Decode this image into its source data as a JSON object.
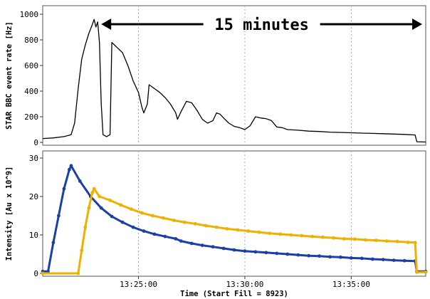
{
  "chart_data": [
    {
      "type": "line",
      "ylabel": "STAR BBC event rate [Hz]",
      "ylim": [
        0,
        1000
      ],
      "yticks": [
        0,
        200,
        400,
        600,
        800,
        1000
      ],
      "xlim": [
        "13:20:30",
        "13:38:30"
      ],
      "grid": true,
      "annotation": {
        "text": "15 minutes",
        "from": "13:23:15",
        "to": "13:38:20"
      },
      "series": [
        {
          "color": "#000000",
          "points": [
            [
              "13:20:30",
              30
            ],
            [
              "13:21:00",
              35
            ],
            [
              "13:21:30",
              45
            ],
            [
              "13:21:50",
              60
            ],
            [
              "13:22:00",
              150
            ],
            [
              "13:22:10",
              420
            ],
            [
              "13:22:20",
              650
            ],
            [
              "13:22:30",
              760
            ],
            [
              "13:22:40",
              850
            ],
            [
              "13:22:50",
              920
            ],
            [
              "13:22:55",
              960
            ],
            [
              "13:23:00",
              900
            ],
            [
              "13:23:05",
              940
            ],
            [
              "13:23:10",
              780
            ],
            [
              "13:23:15",
              300
            ],
            [
              "13:23:20",
              60
            ],
            [
              "13:23:30",
              45
            ],
            [
              "13:23:40",
              60
            ],
            [
              "13:23:45",
              780
            ],
            [
              "13:24:00",
              740
            ],
            [
              "13:24:15",
              700
            ],
            [
              "13:24:30",
              600
            ],
            [
              "13:24:45",
              480
            ],
            [
              "13:25:00",
              390
            ],
            [
              "13:25:10",
              270
            ],
            [
              "13:25:15",
              230
            ],
            [
              "13:25:25",
              300
            ],
            [
              "13:25:30",
              450
            ],
            [
              "13:25:45",
              420
            ],
            [
              "13:26:00",
              390
            ],
            [
              "13:26:15",
              350
            ],
            [
              "13:26:30",
              300
            ],
            [
              "13:26:45",
              230
            ],
            [
              "13:26:50",
              180
            ],
            [
              "13:27:00",
              240
            ],
            [
              "13:27:15",
              320
            ],
            [
              "13:27:30",
              310
            ],
            [
              "13:27:45",
              250
            ],
            [
              "13:28:00",
              180
            ],
            [
              "13:28:15",
              150
            ],
            [
              "13:28:30",
              170
            ],
            [
              "13:28:40",
              230
            ],
            [
              "13:28:50",
              220
            ],
            [
              "13:29:00",
              190
            ],
            [
              "13:29:15",
              150
            ],
            [
              "13:29:30",
              125
            ],
            [
              "13:29:45",
              115
            ],
            [
              "13:30:00",
              100
            ],
            [
              "13:30:15",
              130
            ],
            [
              "13:30:30",
              200
            ],
            [
              "13:30:45",
              190
            ],
            [
              "13:31:00",
              185
            ],
            [
              "13:31:15",
              170
            ],
            [
              "13:31:30",
              120
            ],
            [
              "13:31:45",
              115
            ],
            [
              "13:32:00",
              100
            ],
            [
              "13:32:30",
              95
            ],
            [
              "13:33:00",
              88
            ],
            [
              "13:33:30",
              85
            ],
            [
              "13:34:00",
              80
            ],
            [
              "13:34:30",
              78
            ],
            [
              "13:35:00",
              75
            ],
            [
              "13:35:30",
              72
            ],
            [
              "13:36:00",
              70
            ],
            [
              "13:36:30",
              68
            ],
            [
              "13:37:00",
              65
            ],
            [
              "13:37:30",
              62
            ],
            [
              "13:38:00",
              58
            ],
            [
              "13:38:05",
              5
            ],
            [
              "13:38:30",
              3
            ]
          ]
        }
      ]
    },
    {
      "type": "line",
      "ylabel": "Intensity [Au x 10^9]",
      "xlabel": "Time (Start Fill = 8923)",
      "ylim": [
        0,
        30
      ],
      "yticks": [
        0,
        10,
        20,
        30
      ],
      "xticks": [
        "13:25:00",
        "13:30:00",
        "13:35:00"
      ],
      "xlim": [
        "13:20:30",
        "13:38:30"
      ],
      "grid": true,
      "series": [
        {
          "color": "#1a3fa8",
          "points": [
            [
              "13:20:30",
              0.5
            ],
            [
              "13:20:45",
              0.5
            ],
            [
              "13:21:00",
              8
            ],
            [
              "13:21:15",
              15
            ],
            [
              "13:21:30",
              22
            ],
            [
              "13:21:45",
              27
            ],
            [
              "13:21:50",
              28
            ],
            [
              "13:22:15",
              24
            ],
            [
              "13:22:45",
              20
            ],
            [
              "13:23:15",
              17
            ],
            [
              "13:23:45",
              14.8
            ],
            [
              "13:24:15",
              13.3
            ],
            [
              "13:24:45",
              12
            ],
            [
              "13:25:15",
              11
            ],
            [
              "13:25:45",
              10.2
            ],
            [
              "13:26:15",
              9.6
            ],
            [
              "13:26:45",
              9
            ],
            [
              "13:27:00",
              8.4
            ],
            [
              "13:27:30",
              7.8
            ],
            [
              "13:28:00",
              7.3
            ],
            [
              "13:28:30",
              6.9
            ],
            [
              "13:29:00",
              6.5
            ],
            [
              "13:29:30",
              6.1
            ],
            [
              "13:30:00",
              5.8
            ],
            [
              "13:30:30",
              5.6
            ],
            [
              "13:31:00",
              5.4
            ],
            [
              "13:31:30",
              5.2
            ],
            [
              "13:32:00",
              5
            ],
            [
              "13:32:30",
              4.8
            ],
            [
              "13:33:00",
              4.6
            ],
            [
              "13:33:30",
              4.5
            ],
            [
              "13:34:00",
              4.3
            ],
            [
              "13:34:30",
              4.2
            ],
            [
              "13:35:00",
              4
            ],
            [
              "13:35:30",
              3.9
            ],
            [
              "13:36:00",
              3.7
            ],
            [
              "13:36:30",
              3.6
            ],
            [
              "13:37:00",
              3.4
            ],
            [
              "13:37:30",
              3.3
            ],
            [
              "13:38:00",
              3.2
            ],
            [
              "13:38:05",
              0.5
            ],
            [
              "13:38:30",
              0.5
            ]
          ]
        },
        {
          "color": "#f0b000",
          "points": [
            [
              "13:20:30",
              0
            ],
            [
              "13:22:10",
              0
            ],
            [
              "13:22:20",
              6
            ],
            [
              "13:22:30",
              12
            ],
            [
              "13:22:40",
              17
            ],
            [
              "13:22:50",
              21
            ],
            [
              "13:22:55",
              22
            ],
            [
              "13:23:10",
              20
            ],
            [
              "13:23:40",
              19
            ],
            [
              "13:24:10",
              17.8
            ],
            [
              "13:24:40",
              16.7
            ],
            [
              "13:25:10",
              15.7
            ],
            [
              "13:25:40",
              15
            ],
            [
              "13:26:10",
              14.4
            ],
            [
              "13:26:40",
              13.8
            ],
            [
              "13:27:10",
              13.3
            ],
            [
              "13:27:40",
              12.9
            ],
            [
              "13:28:10",
              12.4
            ],
            [
              "13:28:40",
              12
            ],
            [
              "13:29:10",
              11.6
            ],
            [
              "13:29:40",
              11.3
            ],
            [
              "13:30:10",
              11
            ],
            [
              "13:30:40",
              10.7
            ],
            [
              "13:31:10",
              10.4
            ],
            [
              "13:31:40",
              10.2
            ],
            [
              "13:32:10",
              10
            ],
            [
              "13:32:40",
              9.8
            ],
            [
              "13:33:10",
              9.6
            ],
            [
              "13:33:40",
              9.4
            ],
            [
              "13:34:10",
              9.2
            ],
            [
              "13:34:40",
              9
            ],
            [
              "13:35:10",
              8.9
            ],
            [
              "13:35:40",
              8.7
            ],
            [
              "13:36:10",
              8.6
            ],
            [
              "13:36:40",
              8.4
            ],
            [
              "13:37:10",
              8.3
            ],
            [
              "13:37:40",
              8.1
            ],
            [
              "13:38:00",
              8
            ],
            [
              "13:38:05",
              0.3
            ],
            [
              "13:38:30",
              0.3
            ]
          ]
        }
      ]
    }
  ]
}
